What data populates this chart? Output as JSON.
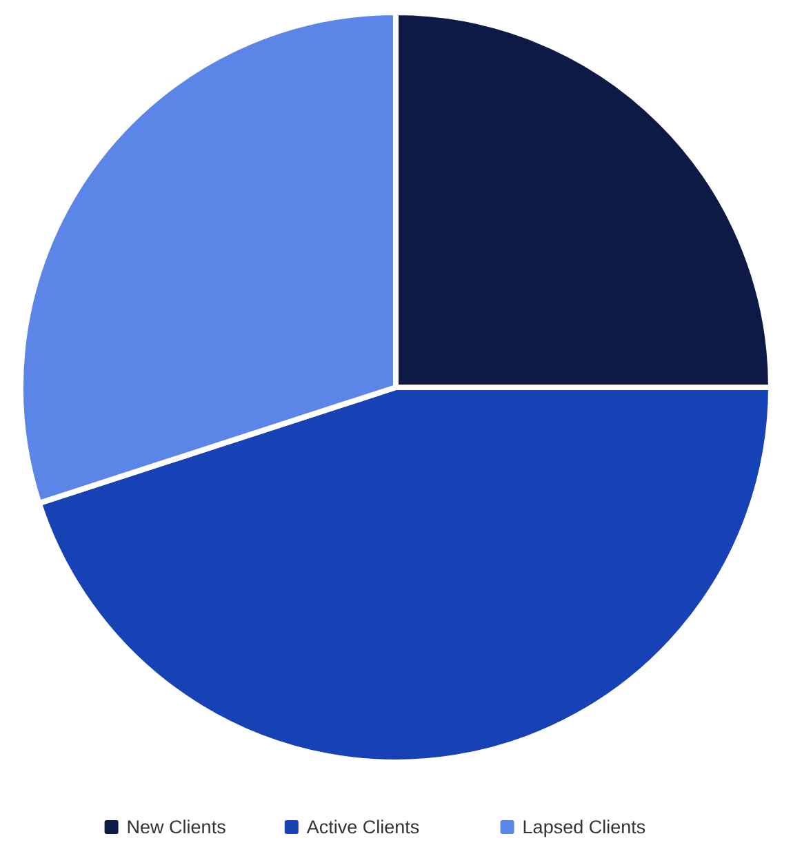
{
  "chart_data": {
    "type": "pie",
    "categories": [
      "New Clients",
      "Active Clients",
      "Lapsed Clients"
    ],
    "values": [
      25,
      45,
      30
    ],
    "colors": [
      "#0c1a45",
      "#1742b5",
      "#5b86e8"
    ],
    "legend": "bottom"
  }
}
